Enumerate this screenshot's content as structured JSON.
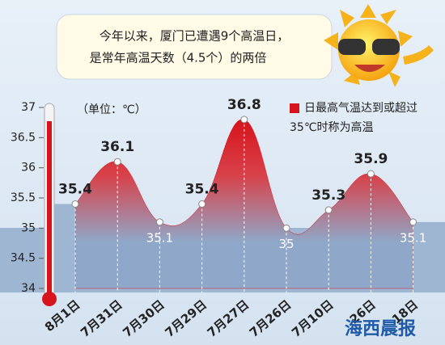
{
  "chart_data": {
    "type": "area",
    "title": "今年以来，厦门已遭遇9个高温日，",
    "subtitle": "是常年高温天数（4.5个）的两倍",
    "y_label": "（单位：℃）",
    "annotation": [
      "日最高气温达到或超过",
      "35℃时称为高温"
    ],
    "categories": [
      "8月1日",
      "7月31日",
      "7月30日",
      "7月29日",
      "7月27日",
      "7月26日",
      "7月10日",
      "26日",
      "18日"
    ],
    "values": [
      35.4,
      36.1,
      35.1,
      35.4,
      36.8,
      35,
      35.3,
      35.9,
      35.1
    ],
    "color": "#d7141d",
    "ylim": [
      34,
      37
    ],
    "yticks": [
      34,
      34.5,
      35,
      35.5,
      36,
      36.5,
      37
    ]
  },
  "logo": "海西晨报"
}
